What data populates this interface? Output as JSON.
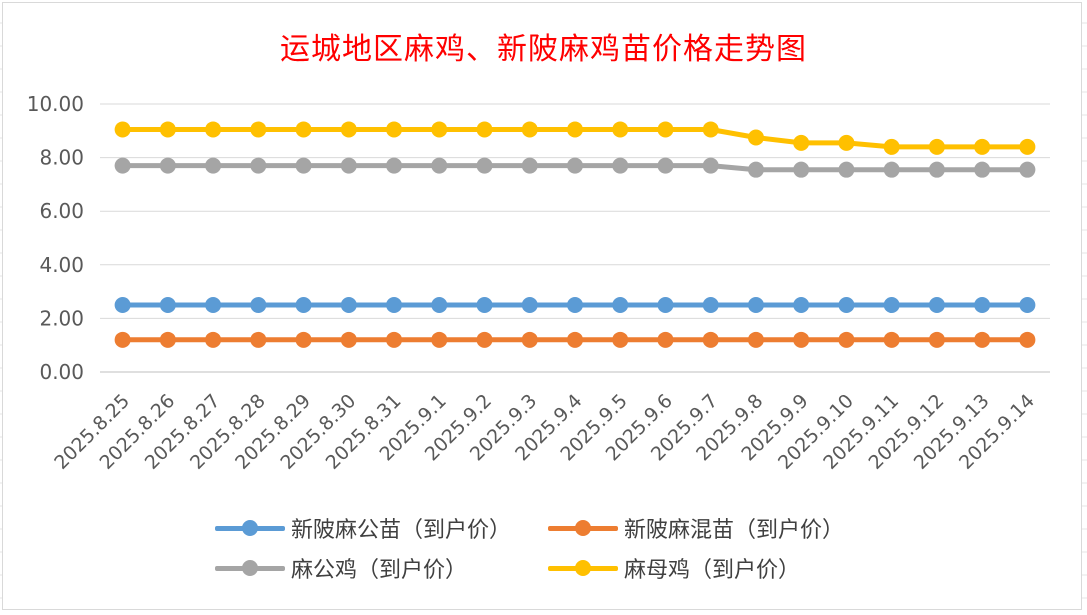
{
  "chart_data": {
    "type": "line",
    "title": "运城地区麻鸡、新陂麻鸡苗价格走势图",
    "xlabel": "",
    "ylabel": "",
    "ylim": [
      0,
      10
    ],
    "yticks": [
      "0.00",
      "2.00",
      "4.00",
      "6.00",
      "8.00",
      "10.00"
    ],
    "grid": true,
    "legend_position": "bottom",
    "categories": [
      "2025.8.25",
      "2025.8.26",
      "2025.8.27",
      "2025.8.28",
      "2025.8.29",
      "2025.8.30",
      "2025.8.31",
      "2025.9.1",
      "2025.9.2",
      "2025.9.3",
      "2025.9.4",
      "2025.9.5",
      "2025.9.6",
      "2025.9.7",
      "2025.9.8",
      "2025.9.9",
      "2025.9.10",
      "2025.9.11",
      "2025.9.12",
      "2025.9.13",
      "2025.9.14"
    ],
    "series": [
      {
        "name": "新陂麻公苗（到户价）",
        "color": "#5b9bd5",
        "values": [
          2.5,
          2.5,
          2.5,
          2.5,
          2.5,
          2.5,
          2.5,
          2.5,
          2.5,
          2.5,
          2.5,
          2.5,
          2.5,
          2.5,
          2.5,
          2.5,
          2.5,
          2.5,
          2.5,
          2.5,
          2.5
        ]
      },
      {
        "name": "新陂麻混苗（到户价）",
        "color": "#ed7d31",
        "values": [
          1.2,
          1.2,
          1.2,
          1.2,
          1.2,
          1.2,
          1.2,
          1.2,
          1.2,
          1.2,
          1.2,
          1.2,
          1.2,
          1.2,
          1.2,
          1.2,
          1.2,
          1.2,
          1.2,
          1.2,
          1.2
        ]
      },
      {
        "name": "麻公鸡（到户价）",
        "color": "#a5a5a5",
        "values": [
          7.7,
          7.7,
          7.7,
          7.7,
          7.7,
          7.7,
          7.7,
          7.7,
          7.7,
          7.7,
          7.7,
          7.7,
          7.7,
          7.7,
          7.55,
          7.55,
          7.55,
          7.55,
          7.55,
          7.55,
          7.55
        ]
      },
      {
        "name": "麻母鸡（到户价）",
        "color": "#ffc000",
        "values": [
          9.05,
          9.05,
          9.05,
          9.05,
          9.05,
          9.05,
          9.05,
          9.05,
          9.05,
          9.05,
          9.05,
          9.05,
          9.05,
          9.05,
          8.75,
          8.55,
          8.55,
          8.4,
          8.4,
          8.4,
          8.4
        ]
      }
    ]
  }
}
